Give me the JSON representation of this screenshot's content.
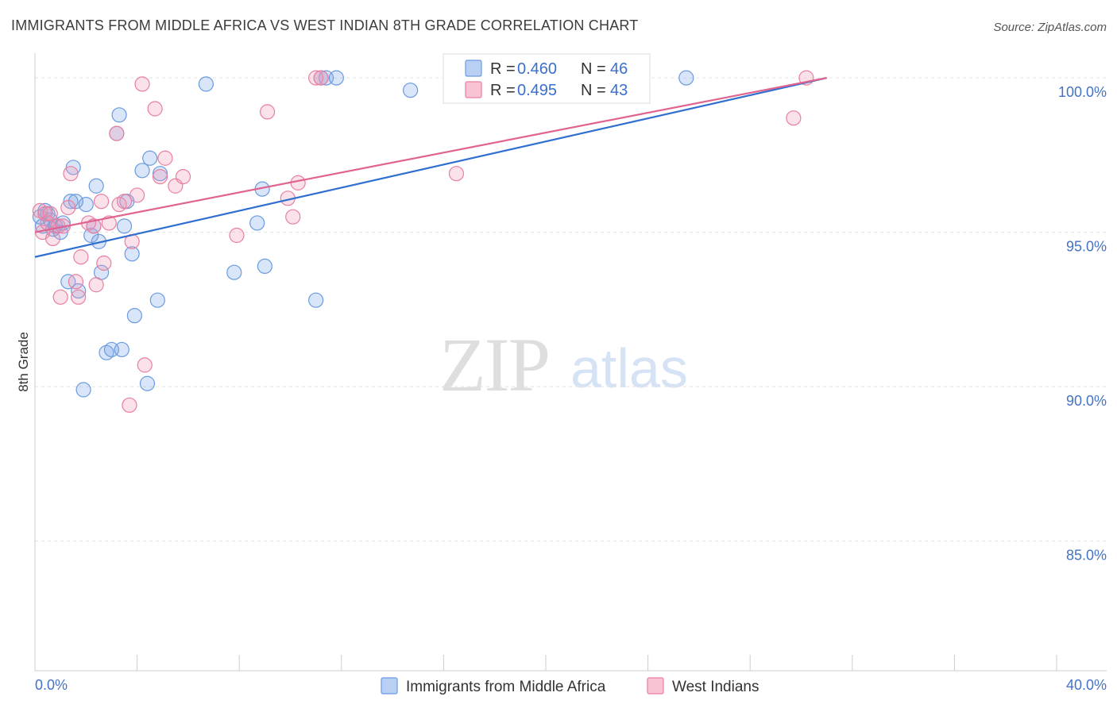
{
  "chart_data": {
    "type": "scatter",
    "title": "IMMIGRANTS FROM MIDDLE AFRICA VS WEST INDIAN 8TH GRADE CORRELATION CHART",
    "source": "Source: ZipAtlas.com",
    "xlabel": "",
    "ylabel": "8th Grade",
    "xlim": [
      0,
      40
    ],
    "ylim": [
      80.8,
      100.8
    ],
    "x_tick_labels": [
      "0.0%",
      "40.0%"
    ],
    "y_ticks": [
      85,
      90,
      95,
      100
    ],
    "y_tick_labels": [
      "85.0%",
      "90.0%",
      "95.0%",
      "100.0%"
    ],
    "grid": true,
    "watermark": {
      "part1": "ZIP",
      "part2": "atlas"
    },
    "legend": {
      "r_label": "R = ",
      "n_label": "N = ",
      "entries": [
        {
          "name": "Immigrants from Middle Africa",
          "r": "0.460",
          "n": "46",
          "color": "#6a9be0",
          "fill": "#b9cff3"
        },
        {
          "name": "West Indians",
          "r": "0.495",
          "n": "43",
          "color": "#e87fa1",
          "fill": "#f8c4d4"
        }
      ]
    },
    "series": [
      {
        "name": "Immigrants from Middle Africa",
        "color": "#6a9be0",
        "fill": "rgba(120,160,230,0.28)",
        "line_color": "#2f6fd0",
        "trend": {
          "x": [
            0.0,
            31.0
          ],
          "y": [
            94.2,
            100.0
          ]
        },
        "points": [
          [
            0.2,
            95.5
          ],
          [
            0.3,
            95.2
          ],
          [
            0.5,
            95.6
          ],
          [
            0.6,
            95.4
          ],
          [
            0.7,
            95.1
          ],
          [
            0.8,
            95.2
          ],
          [
            1.0,
            95.0
          ],
          [
            1.1,
            95.3
          ],
          [
            1.3,
            93.4
          ],
          [
            1.4,
            96.0
          ],
          [
            1.5,
            97.1
          ],
          [
            1.6,
            96.0
          ],
          [
            1.7,
            93.1
          ],
          [
            1.9,
            89.9
          ],
          [
            2.0,
            95.9
          ],
          [
            2.2,
            94.9
          ],
          [
            2.3,
            95.2
          ],
          [
            2.4,
            96.5
          ],
          [
            2.5,
            94.7
          ],
          [
            2.6,
            93.7
          ],
          [
            2.8,
            91.1
          ],
          [
            3.0,
            91.2
          ],
          [
            3.2,
            98.2
          ],
          [
            3.3,
            98.8
          ],
          [
            3.4,
            91.2
          ],
          [
            3.5,
            95.2
          ],
          [
            3.6,
            96.0
          ],
          [
            3.8,
            94.3
          ],
          [
            3.9,
            92.3
          ],
          [
            4.2,
            97.0
          ],
          [
            4.4,
            90.1
          ],
          [
            4.5,
            97.4
          ],
          [
            4.8,
            92.8
          ],
          [
            4.9,
            96.9
          ],
          [
            6.7,
            99.8
          ],
          [
            7.8,
            93.7
          ],
          [
            8.7,
            95.3
          ],
          [
            8.9,
            96.4
          ],
          [
            9.0,
            93.9
          ],
          [
            11.0,
            92.8
          ],
          [
            11.2,
            100.0
          ],
          [
            11.4,
            100.0
          ],
          [
            11.8,
            100.0
          ],
          [
            14.7,
            99.6
          ],
          [
            25.5,
            100.0
          ],
          [
            0.4,
            95.7
          ]
        ]
      },
      {
        "name": "West Indians",
        "color": "#e87fa1",
        "fill": "rgba(240,150,180,0.28)",
        "line_color": "#e0648f",
        "trend": {
          "x": [
            0.0,
            31.0
          ],
          "y": [
            95.0,
            100.0
          ]
        },
        "points": [
          [
            0.2,
            95.7
          ],
          [
            0.3,
            95.0
          ],
          [
            0.4,
            95.6
          ],
          [
            0.5,
            95.3
          ],
          [
            0.6,
            95.6
          ],
          [
            0.7,
            94.8
          ],
          [
            0.9,
            95.2
          ],
          [
            1.0,
            92.9
          ],
          [
            1.1,
            95.2
          ],
          [
            1.3,
            95.8
          ],
          [
            1.4,
            96.9
          ],
          [
            1.6,
            93.4
          ],
          [
            1.7,
            92.9
          ],
          [
            1.8,
            94.2
          ],
          [
            2.1,
            95.3
          ],
          [
            2.3,
            95.2
          ],
          [
            2.4,
            93.3
          ],
          [
            2.6,
            96.0
          ],
          [
            2.7,
            94.0
          ],
          [
            2.9,
            95.3
          ],
          [
            3.2,
            98.2
          ],
          [
            3.3,
            95.9
          ],
          [
            3.5,
            96.0
          ],
          [
            3.7,
            89.4
          ],
          [
            3.8,
            94.7
          ],
          [
            4.0,
            96.2
          ],
          [
            4.2,
            99.8
          ],
          [
            4.3,
            90.7
          ],
          [
            4.7,
            99.0
          ],
          [
            4.9,
            96.8
          ],
          [
            5.1,
            97.4
          ],
          [
            5.5,
            96.5
          ],
          [
            5.8,
            96.8
          ],
          [
            7.9,
            94.9
          ],
          [
            9.1,
            98.9
          ],
          [
            9.9,
            96.1
          ],
          [
            10.1,
            95.5
          ],
          [
            10.3,
            96.6
          ],
          [
            11.0,
            100.0
          ],
          [
            11.2,
            100.0
          ],
          [
            16.5,
            96.9
          ],
          [
            29.7,
            98.7
          ],
          [
            30.2,
            100.0
          ]
        ]
      }
    ]
  }
}
